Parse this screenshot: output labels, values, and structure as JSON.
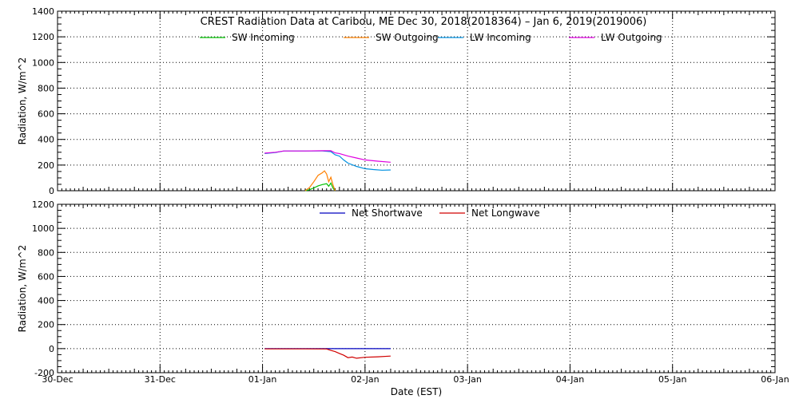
{
  "chart_data": [
    {
      "type": "line",
      "title": "CREST Radiation Data at Caribou, ME   Dec 30, 2018(2018364) – Jan  6, 2019(2019006)",
      "xlabel": "",
      "ylabel": "Radiation, W/m^2",
      "ylim": [
        0,
        1400
      ],
      "yticks": [
        0,
        200,
        400,
        600,
        800,
        1000,
        1200,
        1400
      ],
      "ytick_labels": [
        "0",
        "200",
        "400",
        "600",
        "800",
        "1000",
        "1200",
        "1400"
      ],
      "x_range": [
        "2018-12-30 00:00",
        "2019-01-06 00:00"
      ],
      "grid": true,
      "legend": "top",
      "series": [
        {
          "name": "SW Incoming",
          "color": "#00c000",
          "points": [
            [
              "2019-01-01 10:00",
              0
            ],
            [
              "2019-01-01 11:00",
              8
            ],
            [
              "2019-01-01 12:00",
              22
            ],
            [
              "2019-01-01 13:00",
              38
            ],
            [
              "2019-01-01 14:00",
              48
            ],
            [
              "2019-01-01 15:00",
              55
            ],
            [
              "2019-01-01 15:30",
              35
            ],
            [
              "2019-01-01 16:00",
              60
            ],
            [
              "2019-01-01 16:30",
              20
            ],
            [
              "2019-01-01 17:00",
              0
            ]
          ]
        },
        {
          "name": "SW Outgoing",
          "color": "#ff8000",
          "points": [
            [
              "2019-01-01 10:00",
              0
            ],
            [
              "2019-01-01 11:00",
              25
            ],
            [
              "2019-01-01 12:00",
              70
            ],
            [
              "2019-01-01 13:00",
              120
            ],
            [
              "2019-01-01 14:00",
              140
            ],
            [
              "2019-01-01 14:30",
              155
            ],
            [
              "2019-01-01 15:00",
              130
            ],
            [
              "2019-01-01 15:30",
              70
            ],
            [
              "2019-01-01 16:00",
              105
            ],
            [
              "2019-01-01 16:30",
              45
            ],
            [
              "2019-01-01 17:00",
              0
            ]
          ]
        },
        {
          "name": "LW Incoming",
          "color": "#0090e0",
          "points": [
            [
              "2019-01-01 00:30",
              290
            ],
            [
              "2019-01-01 03:00",
              298
            ],
            [
              "2019-01-01 05:00",
              310
            ],
            [
              "2019-01-01 10:00",
              310
            ],
            [
              "2019-01-01 14:00",
              310
            ],
            [
              "2019-01-01 16:00",
              305
            ],
            [
              "2019-01-01 17:00",
              280
            ],
            [
              "2019-01-01 18:00",
              270
            ],
            [
              "2019-01-01 19:00",
              240
            ],
            [
              "2019-01-01 20:00",
              215
            ],
            [
              "2019-01-01 22:00",
              190
            ],
            [
              "2019-01-02 00:00",
              172
            ],
            [
              "2019-01-02 02:00",
              165
            ],
            [
              "2019-01-02 04:00",
              160
            ],
            [
              "2019-01-02 06:00",
              162
            ]
          ]
        },
        {
          "name": "LW Outgoing",
          "color": "#e000e0",
          "points": [
            [
              "2019-01-01 00:30",
              293
            ],
            [
              "2019-01-01 03:00",
              300
            ],
            [
              "2019-01-01 05:00",
              310
            ],
            [
              "2019-01-01 10:00",
              310
            ],
            [
              "2019-01-01 14:00",
              312
            ],
            [
              "2019-01-01 16:00",
              312
            ],
            [
              "2019-01-01 17:00",
              295
            ],
            [
              "2019-01-01 18:00",
              290
            ],
            [
              "2019-01-01 20:00",
              270
            ],
            [
              "2019-01-01 22:00",
              255
            ],
            [
              "2019-01-02 00:00",
              240
            ],
            [
              "2019-01-02 03:00",
              230
            ],
            [
              "2019-01-02 06:00",
              222
            ]
          ]
        }
      ]
    },
    {
      "type": "line",
      "title": "",
      "xlabel": "Date (EST)",
      "ylabel": "Radiation, W/m^2",
      "ylim": [
        -200,
        1200
      ],
      "yticks": [
        -200,
        0,
        200,
        400,
        600,
        800,
        1000,
        1200
      ],
      "ytick_labels": [
        "-200",
        "0",
        "200",
        "400",
        "600",
        "800",
        "1000",
        "1200"
      ],
      "x_range": [
        "2018-12-30 00:00",
        "2019-01-06 00:00"
      ],
      "xtick_labels": [
        "30-Dec",
        "31-Dec",
        "01-Jan",
        "02-Jan",
        "03-Jan",
        "04-Jan",
        "05-Jan",
        "06-Jan"
      ],
      "grid": true,
      "legend": "top",
      "series": [
        {
          "name": "Net Shortwave",
          "color": "#0000c0",
          "points": [
            [
              "2019-01-01 00:30",
              0
            ],
            [
              "2019-01-01 10:00",
              0
            ],
            [
              "2019-01-01 14:00",
              0
            ],
            [
              "2019-01-01 18:00",
              0
            ],
            [
              "2019-01-02 06:00",
              0
            ]
          ]
        },
        {
          "name": "Net Longwave",
          "color": "#d00000",
          "points": [
            [
              "2019-01-01 00:30",
              -2
            ],
            [
              "2019-01-01 10:00",
              -2
            ],
            [
              "2019-01-01 15:00",
              -3
            ],
            [
              "2019-01-01 16:00",
              -15
            ],
            [
              "2019-01-01 17:00",
              -25
            ],
            [
              "2019-01-01 18:00",
              -40
            ],
            [
              "2019-01-01 19:00",
              -55
            ],
            [
              "2019-01-01 20:00",
              -75
            ],
            [
              "2019-01-01 21:00",
              -70
            ],
            [
              "2019-01-01 22:00",
              -80
            ],
            [
              "2019-01-02 00:00",
              -72
            ],
            [
              "2019-01-02 03:00",
              -68
            ],
            [
              "2019-01-02 06:00",
              -62
            ]
          ]
        }
      ]
    }
  ]
}
